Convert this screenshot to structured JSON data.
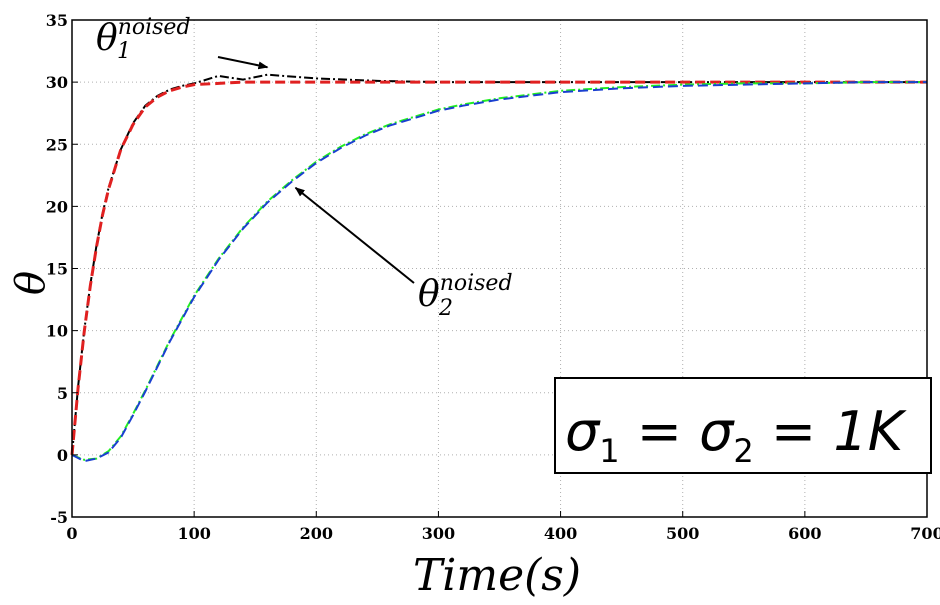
{
  "chart_data": {
    "type": "line",
    "xlabel": "Time(s)",
    "ylabel": "θ",
    "xlim": [
      0,
      700
    ],
    "ylim": [
      -5,
      35
    ],
    "xticks": [
      0,
      100,
      200,
      300,
      400,
      500,
      600,
      700
    ],
    "yticks": [
      -5,
      0,
      5,
      10,
      15,
      20,
      25,
      30,
      35
    ],
    "grid": true,
    "series": [
      {
        "color": "#000000",
        "style": "dash-dot",
        "x": [
          0,
          5,
          10,
          15,
          20,
          25,
          30,
          40,
          50,
          60,
          70,
          80,
          90,
          100,
          120,
          140,
          160,
          200,
          250,
          300,
          350,
          400,
          450,
          500,
          550,
          600,
          650,
          700
        ],
        "y": [
          0,
          5.5,
          10,
          13.7,
          16.8,
          19.4,
          21.5,
          24.6,
          26.7,
          28.1,
          28.9,
          29.4,
          29.7,
          29.9,
          30.5,
          30.2,
          30.6,
          30.3,
          30.1,
          30.0,
          30.0,
          30.0,
          30.0,
          30.0,
          30.0,
          30.0,
          30.0,
          30.0
        ]
      },
      {
        "color": "#e02020",
        "style": "dashed",
        "x": [
          0,
          5,
          10,
          15,
          20,
          25,
          30,
          40,
          50,
          60,
          70,
          80,
          90,
          100,
          120,
          140,
          160,
          200,
          250,
          300,
          400,
          500,
          600,
          700
        ],
        "y": [
          0,
          5.4,
          9.9,
          13.6,
          16.7,
          19.3,
          21.4,
          24.6,
          26.6,
          28.0,
          28.8,
          29.3,
          29.6,
          29.8,
          29.9,
          30.0,
          30.0,
          30.0,
          30.0,
          30.0,
          30.0,
          30.0,
          30.0,
          30.0
        ]
      },
      {
        "color": "#22ee22",
        "style": "dash-dot",
        "x": [
          0,
          10,
          20,
          30,
          40,
          50,
          60,
          80,
          100,
          120,
          140,
          160,
          180,
          200,
          220,
          240,
          260,
          280,
          300,
          320,
          350,
          400,
          450,
          500,
          550,
          600,
          650,
          700
        ],
        "y": [
          0,
          -0.4,
          -0.3,
          0.3,
          1.5,
          3.3,
          5.2,
          9.2,
          12.8,
          15.8,
          18.3,
          20.4,
          22.1,
          23.6,
          24.8,
          25.8,
          26.6,
          27.2,
          27.8,
          28.2,
          28.7,
          29.3,
          29.6,
          29.8,
          29.9,
          29.9,
          30.0,
          30.0
        ]
      },
      {
        "color": "#1a3fd0",
        "style": "dashed",
        "x": [
          0,
          10,
          20,
          30,
          40,
          50,
          60,
          80,
          100,
          120,
          140,
          160,
          180,
          200,
          220,
          240,
          260,
          280,
          300,
          320,
          350,
          400,
          450,
          500,
          550,
          600,
          650,
          700
        ],
        "y": [
          0,
          -0.5,
          -0.3,
          0.2,
          1.4,
          3.2,
          5.1,
          9.1,
          12.7,
          15.7,
          18.2,
          20.3,
          22.0,
          23.5,
          24.7,
          25.7,
          26.5,
          27.1,
          27.7,
          28.1,
          28.6,
          29.2,
          29.5,
          29.7,
          29.8,
          29.9,
          30.0,
          30.0
        ]
      }
    ],
    "annotations": [
      {
        "base": "θ",
        "sub": "1",
        "sup": "noised",
        "arrow_to": [
          160,
          31.2
        ]
      },
      {
        "base": "θ",
        "sub": "2",
        "sup": "noised",
        "arrow_to": [
          183,
          21.5
        ]
      }
    ],
    "textbox": {
      "lhs1": "σ",
      "sub1": "1",
      "eq1": " = ",
      "lhs2": "σ",
      "sub2": "2",
      "eq2": " = ",
      "value": "1K"
    }
  }
}
